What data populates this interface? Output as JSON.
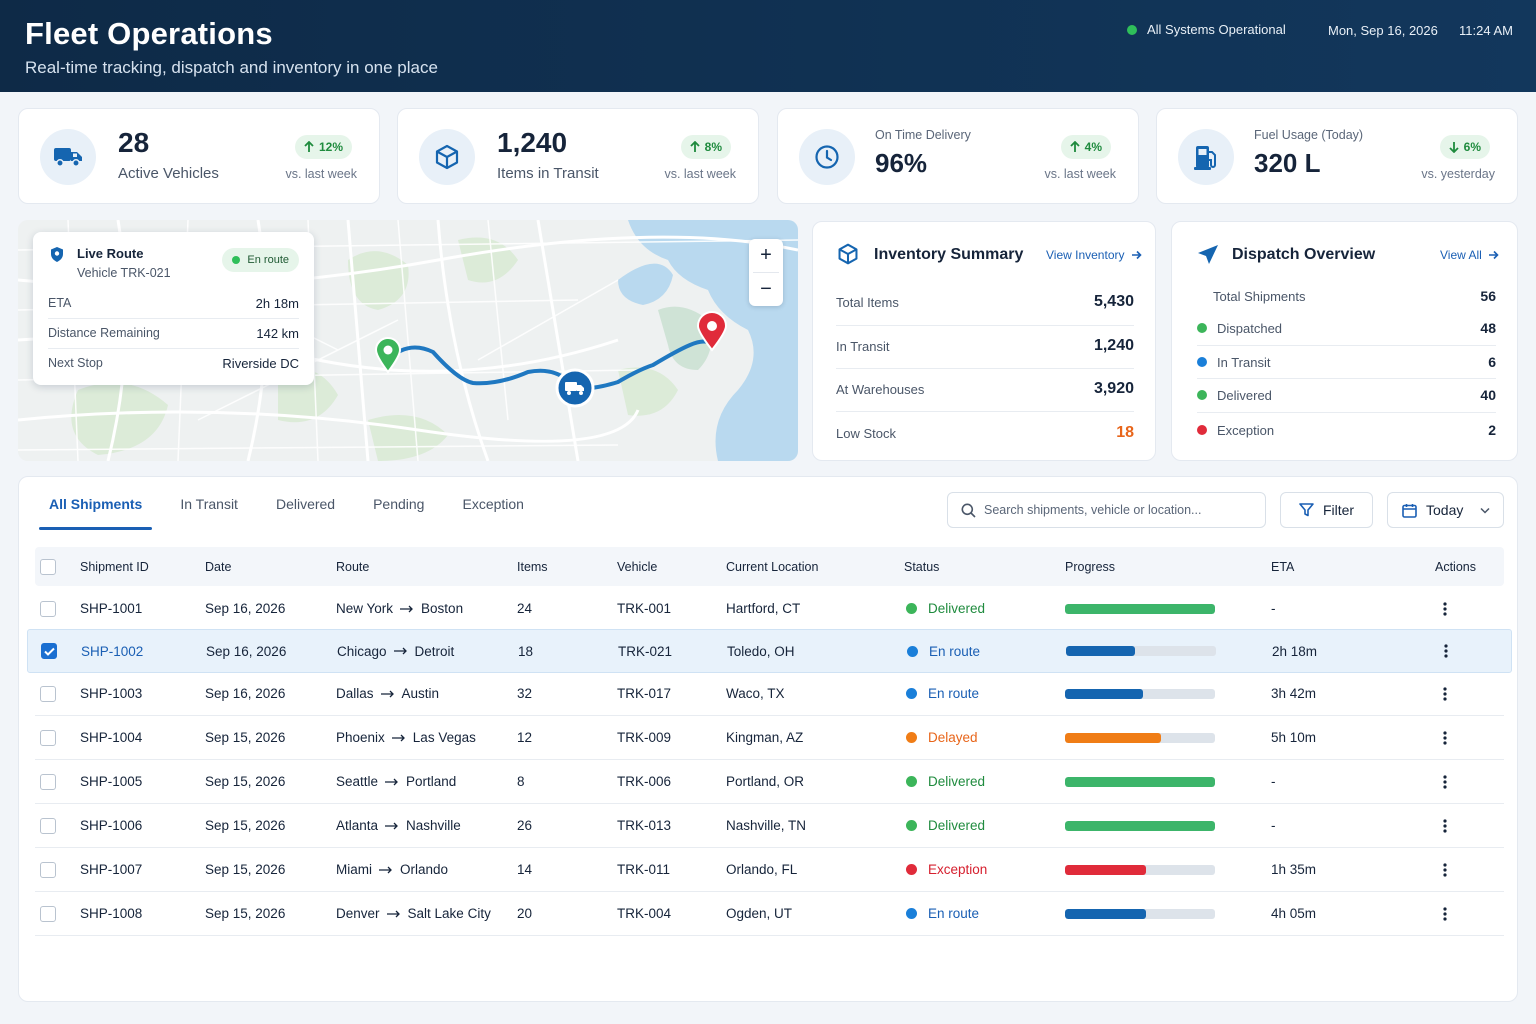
{
  "header": {
    "title": "Fleet Operations",
    "subtitle": "Real-time tracking, dispatch and inventory in one place",
    "status": "All Systems Operational",
    "date": "Mon, Sep 16, 2026",
    "time": "11:24 AM"
  },
  "kpis": [
    {
      "value": "28",
      "label": "Active Vehicles",
      "change": "12%",
      "direction": "up",
      "compare": "vs. last week",
      "icon": "truck-icon"
    },
    {
      "value": "1,240",
      "label": "Items in Transit",
      "change": "8%",
      "direction": "up",
      "compare": "vs. last week",
      "icon": "box-icon"
    },
    {
      "value": "96%",
      "label": "On Time Delivery",
      "change": "4%",
      "direction": "up",
      "compare": "vs. last week",
      "icon": "clock-icon"
    },
    {
      "value": "320 L",
      "label": "Fuel Usage (Today)",
      "change": "6%",
      "direction": "down",
      "compare": "vs. yesterday",
      "icon": "fuel-pump-icon"
    }
  ],
  "live_route": {
    "title": "Live Route",
    "vehicle": "Vehicle TRK-021",
    "status": "En route",
    "rows": [
      {
        "label": "ETA",
        "value": "2h 18m"
      },
      {
        "label": "Distance Remaining",
        "value": "142 km"
      },
      {
        "label": "Next Stop",
        "value": "Riverside DC"
      }
    ]
  },
  "map_controls": {
    "zoom_in": "+",
    "zoom_out": "−"
  },
  "inventory": {
    "title": "Inventory Summary",
    "link": "View Inventory",
    "rows": [
      {
        "label": "Total Items",
        "value": "5,430"
      },
      {
        "label": "In Transit",
        "value": "1,240"
      },
      {
        "label": "At Warehouses",
        "value": "3,920"
      },
      {
        "label": "Low Stock",
        "value": "18",
        "color": "#e8651a"
      }
    ]
  },
  "dispatch": {
    "title": "Dispatch Overview",
    "link": "View All",
    "total_label": "Total Shipments",
    "total_value": "56",
    "rows": [
      {
        "label": "Dispatched",
        "value": "48",
        "color": "#3cb55a"
      },
      {
        "label": "In Transit",
        "value": "6",
        "color": "#1a7fd9"
      },
      {
        "label": "Delivered",
        "value": "40",
        "color": "#3cb55a"
      },
      {
        "label": "Exception",
        "value": "2",
        "color": "#e02b3a"
      }
    ]
  },
  "tabs": [
    "All Shipments",
    "In Transit",
    "Delivered",
    "Pending",
    "Exception"
  ],
  "search": {
    "placeholder": "Search shipments, vehicle or location..."
  },
  "filter_label": "Filter",
  "date_filter": "Today",
  "table": {
    "columns": [
      "Shipment ID",
      "Date",
      "Route",
      "Items",
      "Vehicle",
      "Current Location",
      "Status",
      "Progress",
      "ETA",
      "Actions"
    ],
    "rows": [
      {
        "id": "SHP-1001",
        "date": "Sep 16, 2026",
        "from": "New York",
        "to": "Boston",
        "items": "24",
        "vehicle": "TRK-001",
        "location": "Hartford, CT",
        "status": "Delivered",
        "progress": 100,
        "eta": "-",
        "selected": false
      },
      {
        "id": "SHP-1002",
        "date": "Sep 16, 2026",
        "from": "Chicago",
        "to": "Detroit",
        "items": "18",
        "vehicle": "TRK-021",
        "location": "Toledo, OH",
        "status": "En route",
        "progress": 46,
        "eta": "2h 18m",
        "selected": true
      },
      {
        "id": "SHP-1003",
        "date": "Sep 16, 2026",
        "from": "Dallas",
        "to": "Austin",
        "items": "32",
        "vehicle": "TRK-017",
        "location": "Waco, TX",
        "status": "En route",
        "progress": 52,
        "eta": "3h 42m",
        "selected": false
      },
      {
        "id": "SHP-1004",
        "date": "Sep 15, 2026",
        "from": "Phoenix",
        "to": "Las Vegas",
        "items": "12",
        "vehicle": "TRK-009",
        "location": "Kingman, AZ",
        "status": "Delayed",
        "progress": 64,
        "eta": "5h 10m",
        "selected": false
      },
      {
        "id": "SHP-1005",
        "date": "Sep 15, 2026",
        "from": "Seattle",
        "to": "Portland",
        "items": "8",
        "vehicle": "TRK-006",
        "location": "Portland, OR",
        "status": "Delivered",
        "progress": 100,
        "eta": "-",
        "selected": false
      },
      {
        "id": "SHP-1006",
        "date": "Sep 15, 2026",
        "from": "Atlanta",
        "to": "Nashville",
        "items": "26",
        "vehicle": "TRK-013",
        "location": "Nashville, TN",
        "status": "Delivered",
        "progress": 100,
        "eta": "-",
        "selected": false
      },
      {
        "id": "SHP-1007",
        "date": "Sep 15, 2026",
        "from": "Miami",
        "to": "Orlando",
        "items": "14",
        "vehicle": "TRK-011",
        "location": "Orlando, FL",
        "status": "Exception",
        "progress": 54,
        "eta": "1h 35m",
        "selected": false
      },
      {
        "id": "SHP-1008",
        "date": "Sep 15, 2026",
        "from": "Denver",
        "to": "Salt Lake City",
        "items": "20",
        "vehicle": "TRK-004",
        "location": "Ogden, UT",
        "status": "En route",
        "progress": 54,
        "eta": "4h 05m",
        "selected": false
      }
    ]
  },
  "status_colors": {
    "Delivered": {
      "dot": "#3cb55a",
      "text": "#1f8b3e",
      "bar": "#3cb56a"
    },
    "En route": {
      "dot": "#1a7fd9",
      "text": "#1a5fb4",
      "bar": "#1565b0"
    },
    "Delayed": {
      "dot": "#f07d16",
      "text": "#e8651a",
      "bar": "#f07d16"
    },
    "Exception": {
      "dot": "#e02b3a",
      "text": "#d6202f",
      "bar": "#e02b3a"
    }
  }
}
